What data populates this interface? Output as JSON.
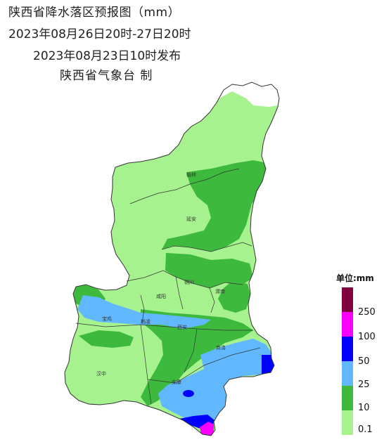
{
  "title": {
    "line1": "陕西省降水落区预报图（mm）",
    "line2": "2023年08月26日20时-27日20时",
    "line3": "2023年08月23日10时发布",
    "line4": "陕西省气象台 制"
  },
  "legend": {
    "unit_label": "单位:mm",
    "levels": [
      {
        "label": "0.1",
        "color": "#a6f28f"
      },
      {
        "label": "10",
        "color": "#3dba3d"
      },
      {
        "label": "25",
        "color": "#61b8ff"
      },
      {
        "label": "50",
        "color": "#0000ff"
      },
      {
        "label": "100",
        "color": "#fa00fa"
      },
      {
        "label": "250",
        "color": "#800040"
      }
    ]
  },
  "cities": [
    {
      "name": "榆林"
    },
    {
      "name": "延安"
    },
    {
      "name": "铜川"
    },
    {
      "name": "渭南"
    },
    {
      "name": "咸阳"
    },
    {
      "name": "宝鸡"
    },
    {
      "name": "杨凌"
    },
    {
      "name": "西安"
    },
    {
      "name": "商洛"
    },
    {
      "name": "汉中"
    },
    {
      "name": "安康"
    }
  ],
  "colors": {
    "no_rain": "#ffffff",
    "light": "#a6f28f",
    "moderate": "#3dba3d",
    "heavy": "#61b8ff",
    "rainstorm": "#0000ff",
    "big_rainstorm": "#fa00fa",
    "extreme": "#800040",
    "boundary": "#333333"
  }
}
